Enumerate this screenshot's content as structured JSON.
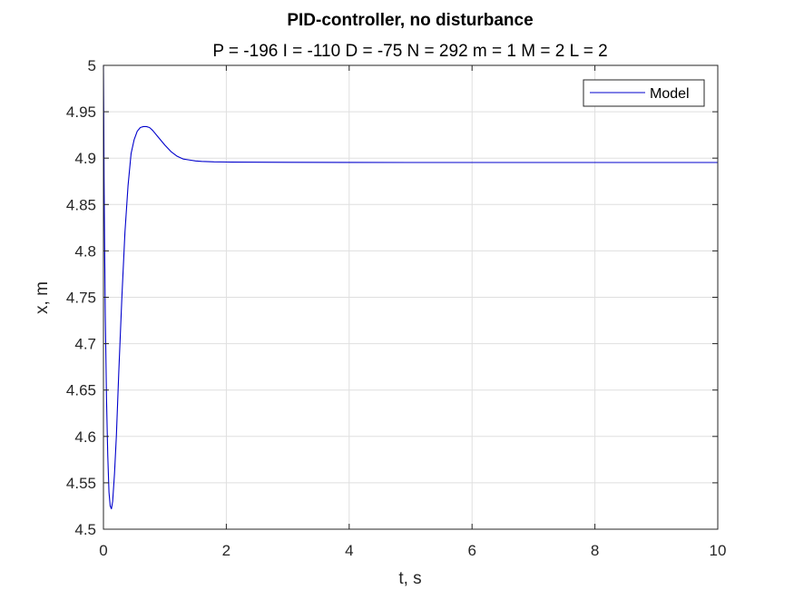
{
  "chart_data": {
    "type": "line",
    "title": "PID-controller, no disturbance",
    "subtitle": "P = -196 I = -110 D = -75 N = 292 m = 1 M = 2 L = 2",
    "xlabel": "t, s",
    "ylabel": "x, m",
    "xlim": [
      0,
      10
    ],
    "ylim": [
      4.5,
      5
    ],
    "xticks": [
      0,
      2,
      4,
      6,
      8,
      10
    ],
    "xtick_labels": [
      "0",
      "2",
      "4",
      "6",
      "8",
      "10"
    ],
    "yticks": [
      4.5,
      4.55,
      4.6,
      4.65,
      4.7,
      4.75,
      4.8,
      4.85,
      4.9,
      4.95,
      5
    ],
    "ytick_labels": [
      "4.5",
      "4.55",
      "4.6",
      "4.65",
      "4.7",
      "4.75",
      "4.8",
      "4.85",
      "4.9",
      "4.95",
      "5"
    ],
    "grid": true,
    "legend_position": "top-right",
    "series": [
      {
        "name": "Model",
        "color": "#0000cc",
        "x": [
          0,
          0.005,
          0.01,
          0.02,
          0.03,
          0.05,
          0.07,
          0.09,
          0.11,
          0.13,
          0.15,
          0.18,
          0.21,
          0.25,
          0.3,
          0.35,
          0.4,
          0.45,
          0.5,
          0.55,
          0.6,
          0.65,
          0.7,
          0.75,
          0.8,
          0.9,
          1.0,
          1.1,
          1.2,
          1.3,
          1.4,
          1.5,
          1.6,
          1.8,
          2.0,
          2.5,
          3,
          4,
          5,
          6,
          7,
          8,
          9,
          10
        ],
        "y": [
          5.0,
          4.95,
          4.88,
          4.8,
          4.73,
          4.64,
          4.58,
          4.54,
          4.525,
          4.522,
          4.53,
          4.56,
          4.6,
          4.67,
          4.75,
          4.82,
          4.87,
          4.905,
          4.92,
          4.929,
          4.933,
          4.934,
          4.934,
          4.933,
          4.93,
          4.922,
          4.914,
          4.907,
          4.902,
          4.899,
          4.898,
          4.897,
          4.8965,
          4.896,
          4.8958,
          4.8956,
          4.8955,
          4.8954,
          4.8953,
          4.8953,
          4.8953,
          4.8953,
          4.8953,
          4.8953
        ]
      }
    ]
  }
}
